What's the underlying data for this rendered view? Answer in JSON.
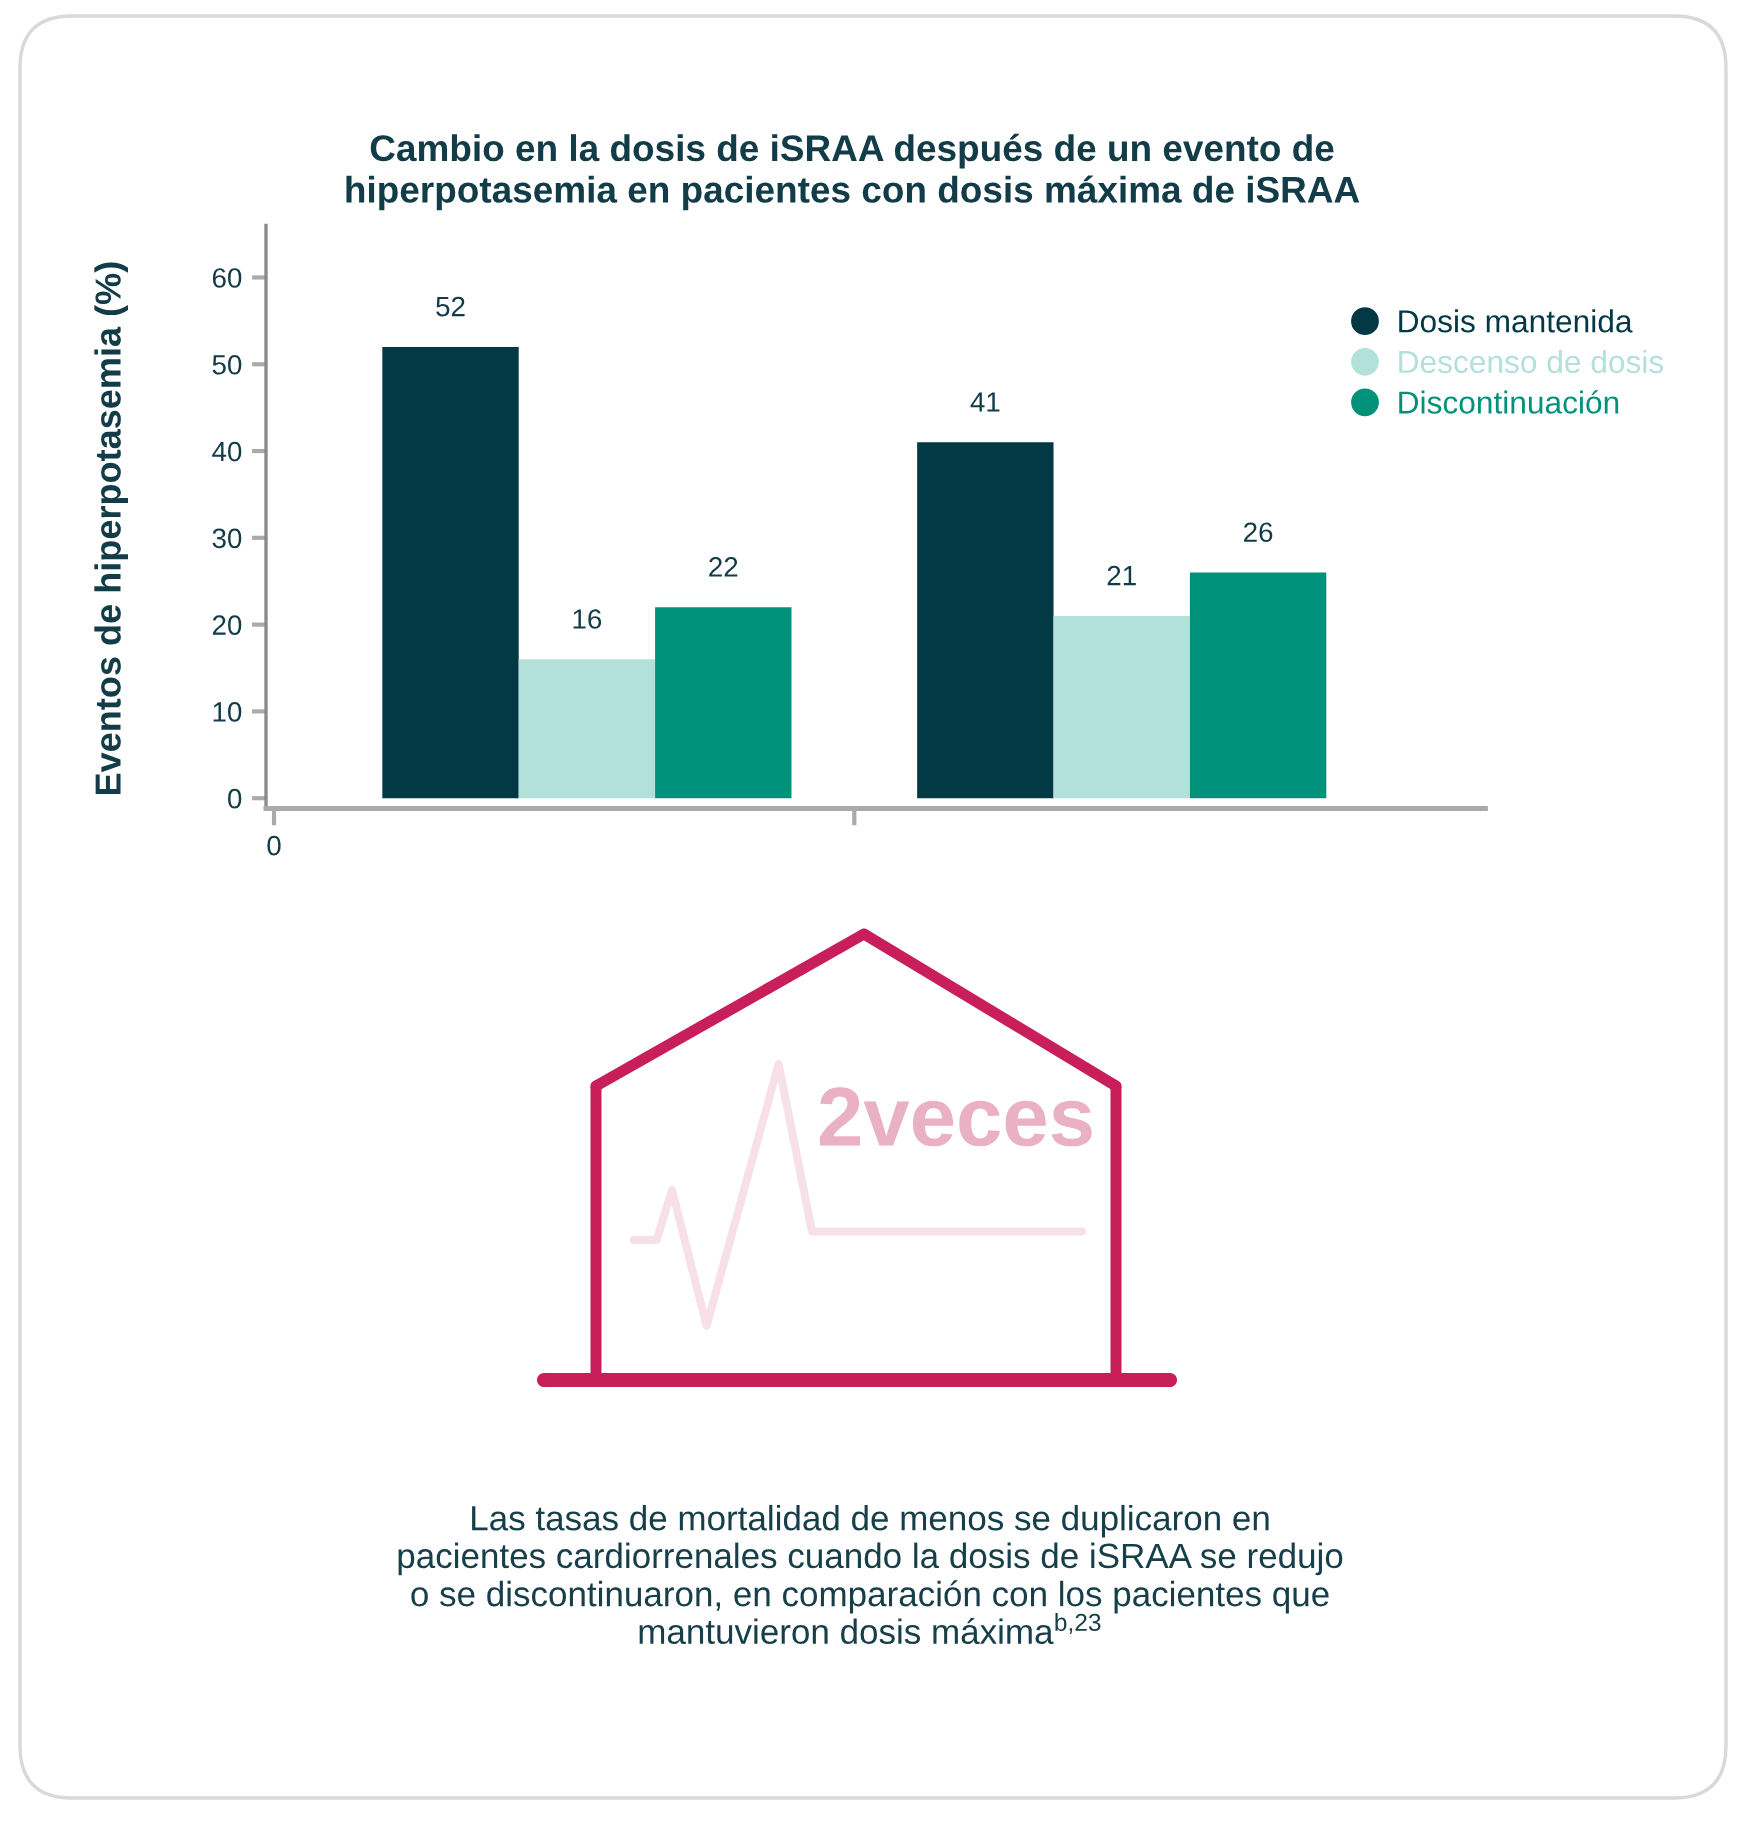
{
  "chart_data": {
    "type": "bar",
    "title": "Cambio en la dosis de iSRAA después de un evento de\nhiperpotasemia en pacientes con dosis máxima de iSRAA",
    "ylabel": "Eventos de hiperpotasemia (%)",
    "categories": [
      null,
      null
    ],
    "series": [
      {
        "name": "Dosis mantenida",
        "color": "#033845",
        "values": [
          52,
          41
        ]
      },
      {
        "name": "Descenso de dosis",
        "color": "#b3e0da",
        "values": [
          16,
          21
        ]
      },
      {
        "name": "Discontinuación",
        "color": "#00917a",
        "values": [
          22,
          26
        ]
      }
    ],
    "ylim": [
      -1.2,
      66
    ],
    "yticks": [
      0,
      10,
      20,
      30,
      40,
      50,
      60
    ],
    "data_labels": true,
    "legend": "top right",
    "annotations": [
      "0",
      "2veces",
      "Las tasas de mortalidad de menos se duplicaron en\npacientes cardiorrenales cuando la dosis de iSRAA se redujo\no se discontinuaron, en comparación con los pacientes que\nmantuvieron dosis máxima$^{b,23}$"
    ]
  }
}
